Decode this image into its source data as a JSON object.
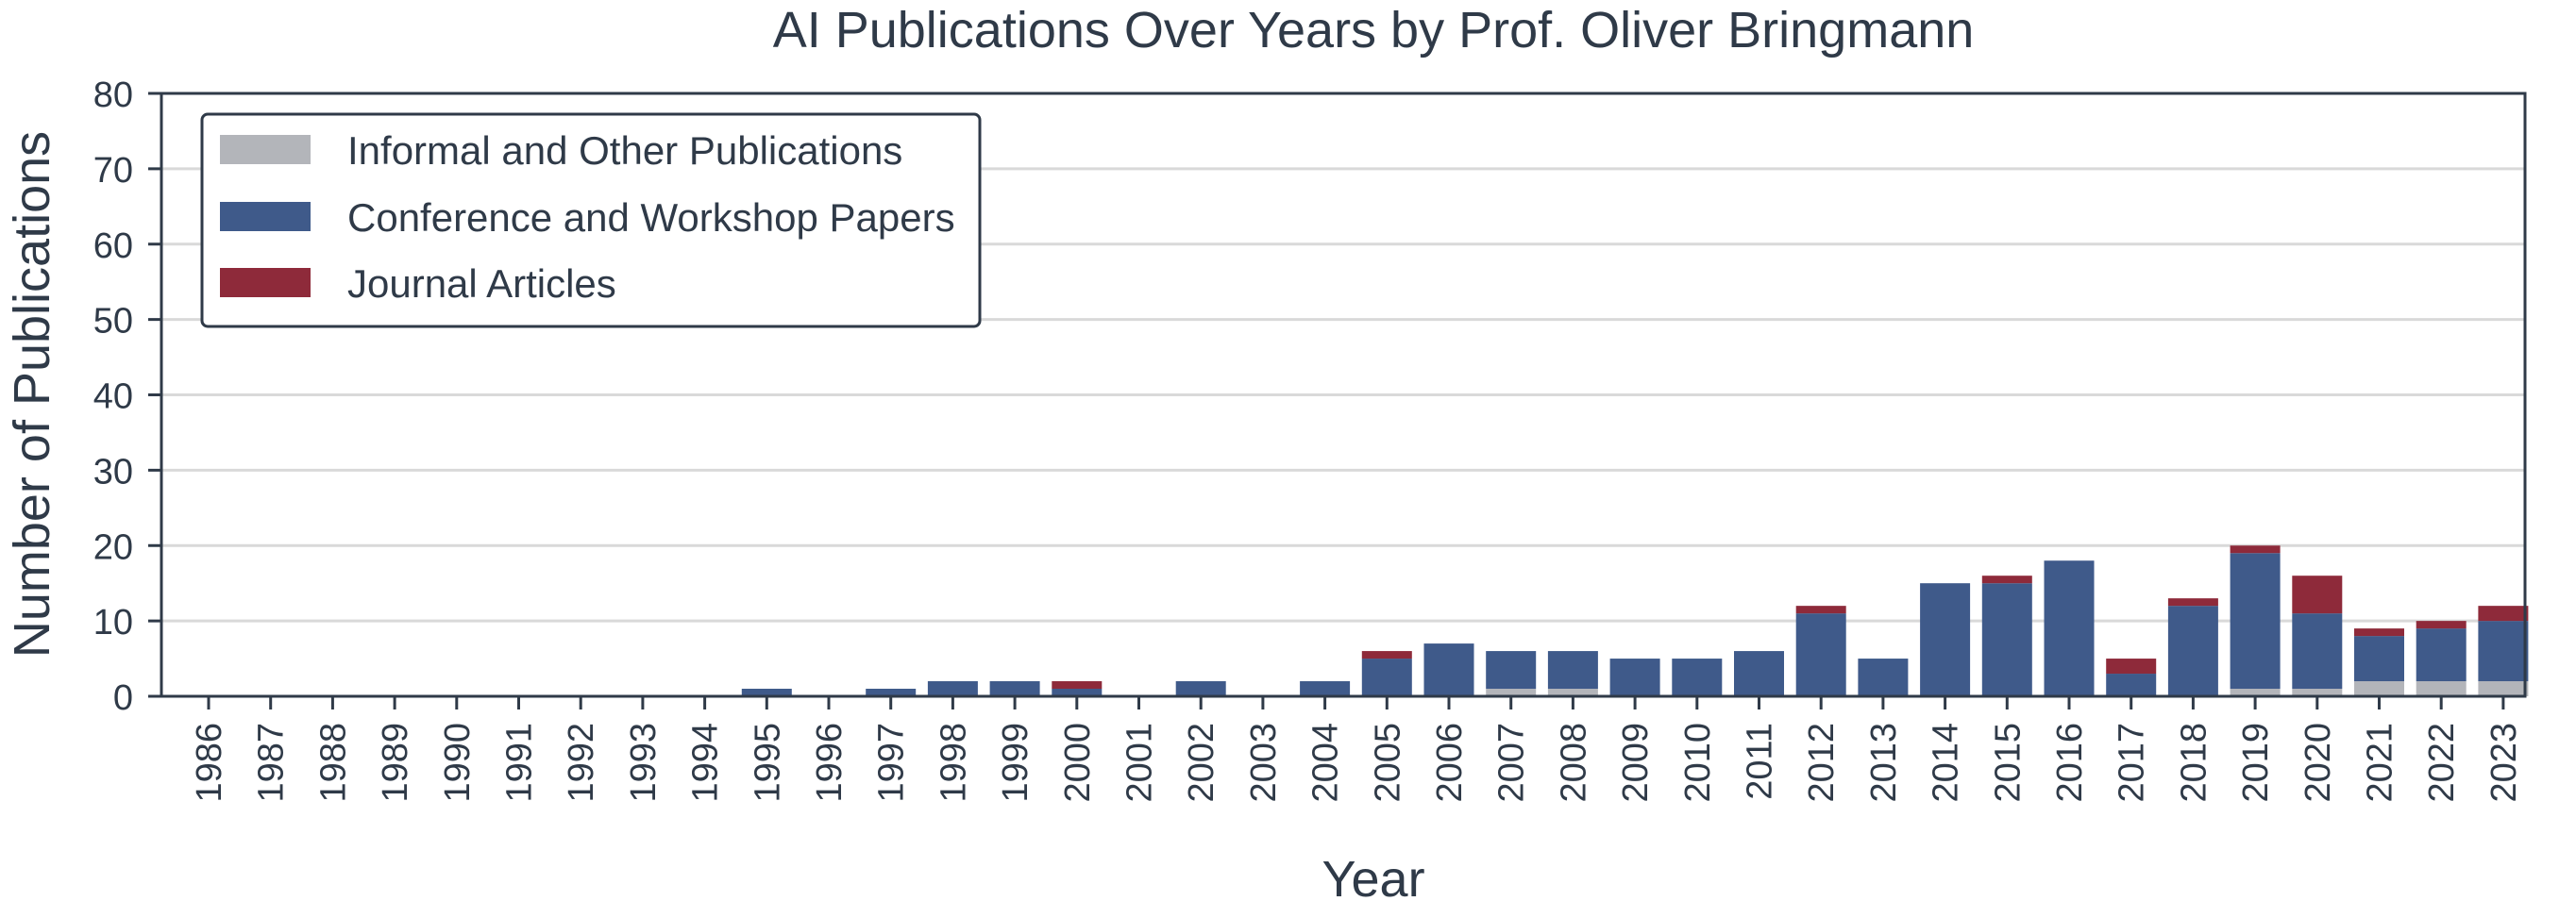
{
  "chart_data": {
    "type": "bar",
    "stacked": true,
    "title": "AI Publications Over Years by Prof. Oliver Bringmann",
    "xlabel": "Year",
    "ylabel": "Number of Publications",
    "ylim": [
      0,
      80
    ],
    "yticks": [
      "0",
      "10",
      "20",
      "30",
      "40",
      "50",
      "60",
      "70",
      "80"
    ],
    "grid": "horizontal",
    "legend_position": "top-left",
    "categories": [
      "1986",
      "1987",
      "1988",
      "1989",
      "1990",
      "1991",
      "1992",
      "1993",
      "1994",
      "1995",
      "1996",
      "1997",
      "1998",
      "1999",
      "2000",
      "2001",
      "2002",
      "2003",
      "2004",
      "2005",
      "2006",
      "2007",
      "2008",
      "2009",
      "2010",
      "2011",
      "2012",
      "2013",
      "2014",
      "2015",
      "2016",
      "2017",
      "2018",
      "2019",
      "2020",
      "2021",
      "2022",
      "2023"
    ],
    "series": [
      {
        "name": "Informal and Other Publications",
        "color": "#b3b5ba",
        "values": [
          0,
          0,
          0,
          0,
          0,
          0,
          0,
          0,
          0,
          0,
          0,
          0,
          0,
          0,
          0,
          0,
          0,
          0,
          0,
          0,
          0,
          1,
          1,
          0,
          0,
          0,
          0,
          0,
          0,
          0,
          0,
          0,
          0,
          1,
          1,
          2,
          2,
          2
        ]
      },
      {
        "name": "Conference and Workshop Papers",
        "color": "#3f5a8a",
        "values": [
          0,
          0,
          0,
          0,
          0,
          0,
          0,
          0,
          0,
          1,
          0,
          1,
          2,
          2,
          1,
          0,
          2,
          0,
          2,
          5,
          7,
          5,
          5,
          5,
          5,
          6,
          11,
          5,
          15,
          15,
          18,
          3,
          12,
          18,
          10,
          6,
          7,
          8
        ]
      },
      {
        "name": "Journal Articles",
        "color": "#8e2a3a",
        "values": [
          0,
          0,
          0,
          0,
          0,
          0,
          0,
          0,
          0,
          0,
          0,
          0,
          0,
          0,
          1,
          0,
          0,
          0,
          0,
          1,
          0,
          0,
          0,
          0,
          0,
          0,
          1,
          0,
          0,
          1,
          0,
          2,
          1,
          1,
          5,
          1,
          1,
          2
        ]
      }
    ]
  }
}
